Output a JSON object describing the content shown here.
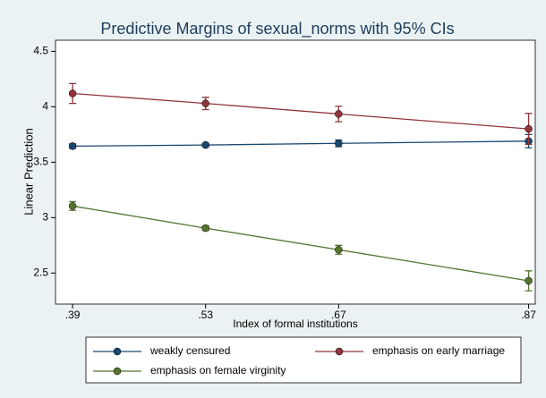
{
  "chart_data": {
    "type": "line",
    "title": "Predictive Margins of sexual_norms with 95% CIs",
    "x_label": "Index of formal institutions",
    "y_label": "Linear Prediction",
    "x": [
      0.39,
      0.53,
      0.67,
      0.87
    ],
    "xlim": [
      0.372,
      0.877
    ],
    "xticks": [
      {
        "value": 0.39,
        "label": ".39"
      },
      {
        "value": 0.53,
        "label": ".53"
      },
      {
        "value": 0.67,
        "label": ".67"
      },
      {
        "value": 0.87,
        "label": ".87"
      }
    ],
    "ylim": [
      2.22,
      4.6
    ],
    "yticks": [
      2.5,
      3,
      3.5,
      4,
      4.5
    ],
    "legend": "bottom",
    "series": [
      {
        "name": "weakly censured",
        "color": "#1a476f",
        "values": [
          3.645,
          3.655,
          3.67,
          3.69
        ],
        "errors": [
          0.02,
          0.015,
          0.03,
          0.06
        ]
      },
      {
        "name": "emphasis on early marriage",
        "color": "#90353b",
        "values": [
          4.12,
          4.03,
          3.935,
          3.8
        ],
        "errors": [
          0.09,
          0.055,
          0.07,
          0.14
        ]
      },
      {
        "name": "emphasis on female virginity",
        "color": "#55752f",
        "values": [
          3.105,
          2.905,
          2.71,
          2.43
        ],
        "errors": [
          0.04,
          0.02,
          0.04,
          0.09
        ]
      }
    ]
  }
}
